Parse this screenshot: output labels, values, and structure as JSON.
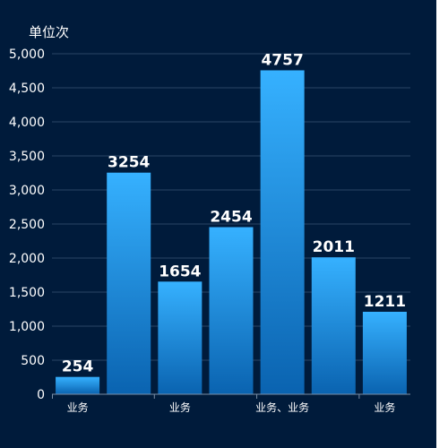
{
  "chart_data": {
    "type": "bar",
    "ylabel": "单位次",
    "ylim": [
      0,
      5000
    ],
    "yticks": [
      0,
      500,
      1000,
      1500,
      2000,
      2500,
      3000,
      3500,
      4000,
      4500,
      5000
    ],
    "ytick_labels": [
      "0",
      "500",
      "1,000",
      "1,500",
      "2,000",
      "2,500",
      "3,000",
      "3,500",
      "4,000",
      "4,500",
      "5,000"
    ],
    "categories": [
      "业务",
      "",
      "业务",
      "",
      "业务、业务",
      "",
      "业务"
    ],
    "values": [
      254,
      3254,
      1654,
      2454,
      4757,
      2011,
      1211
    ],
    "grid": true,
    "colors": {
      "background": "#001b3b",
      "bar_top": "#36b1ff",
      "bar_bottom": "#0a63b0",
      "grid": "#2a4566",
      "axis": "#7a8ea6",
      "text": "#ffffff"
    }
  }
}
